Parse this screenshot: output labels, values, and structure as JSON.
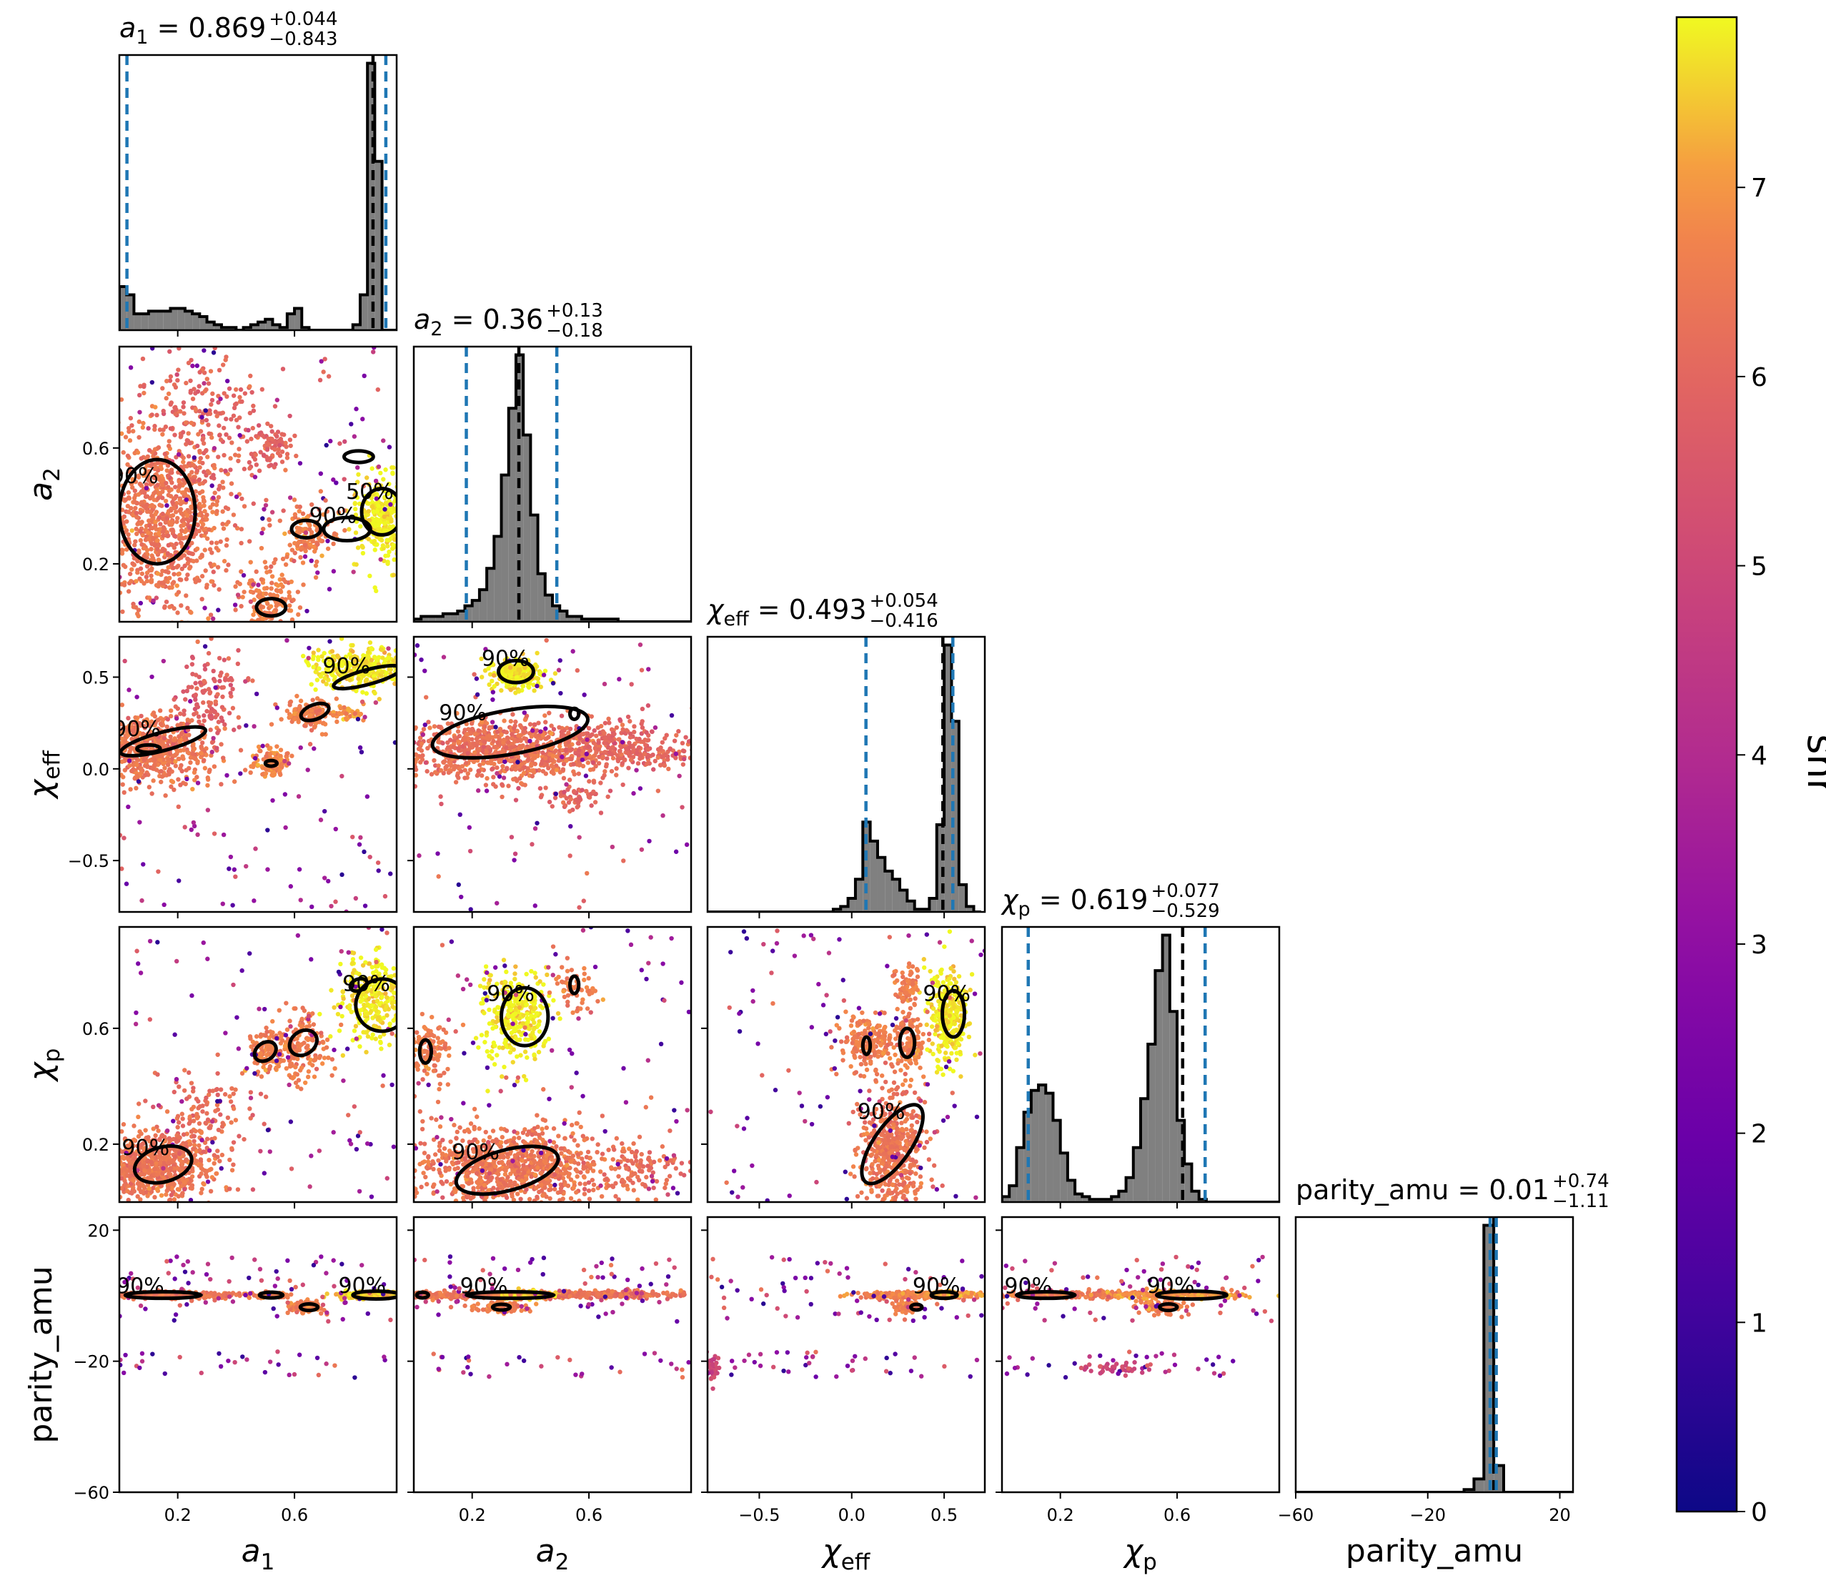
{
  "chart_data": {
    "type": "corner",
    "parameters": [
      {
        "key": "a1",
        "label": "a",
        "sub": "1",
        "italic": true,
        "title_value": "0.869",
        "title_plus": "+0.044",
        "title_minus": "−0.843",
        "range": [
          0.0,
          0.95
        ],
        "ticks": [
          0.2,
          0.6
        ],
        "tick_labels": [
          "0.2",
          "0.6"
        ]
      },
      {
        "key": "a2",
        "label": "a",
        "sub": "2",
        "italic": true,
        "title_value": "0.36",
        "title_plus": "+0.13",
        "title_minus": "−0.18",
        "range": [
          0.0,
          0.95
        ],
        "ticks": [
          0.2,
          0.6
        ],
        "tick_labels": [
          "0.2",
          "0.6"
        ]
      },
      {
        "key": "chi_eff",
        "label": "χ",
        "sub": "eff",
        "italic": true,
        "title_value": "0.493",
        "title_plus": "+0.054",
        "title_minus": "−0.416",
        "range": [
          -0.78,
          0.72
        ],
        "ticks": [
          -0.5,
          0.0,
          0.5
        ],
        "tick_labels": [
          "−0.5",
          "0.0",
          "0.5"
        ]
      },
      {
        "key": "chi_p",
        "label": "χ",
        "sub": "p",
        "italic": true,
        "title_value": "0.619",
        "title_plus": "+0.077",
        "title_minus": "−0.529",
        "range": [
          0.0,
          0.95
        ],
        "ticks": [
          0.2,
          0.6
        ],
        "tick_labels": [
          "0.2",
          "0.6"
        ]
      },
      {
        "key": "parity_amu",
        "label": "parity_amu",
        "sub": "",
        "italic": false,
        "title_value": "0.01",
        "title_plus": "+0.74",
        "title_minus": "−1.11",
        "range": [
          -60,
          24
        ],
        "ticks": [
          -60,
          -20,
          20
        ],
        "tick_labels": [
          "−60",
          "−20",
          "20"
        ]
      }
    ],
    "histograms": [
      {
        "bins": [
          0.0,
          0.025,
          0.05,
          0.075,
          0.1,
          0.125,
          0.15,
          0.175,
          0.2,
          0.225,
          0.25,
          0.275,
          0.3,
          0.325,
          0.35,
          0.375,
          0.4,
          0.425,
          0.45,
          0.475,
          0.5,
          0.525,
          0.55,
          0.575,
          0.6,
          0.625,
          0.65,
          0.675,
          0.7,
          0.725,
          0.75,
          0.775,
          0.8,
          0.825,
          0.85,
          0.875,
          0.9,
          0.925,
          0.95
        ],
        "counts": [
          0.16,
          0.13,
          0.06,
          0.06,
          0.07,
          0.07,
          0.07,
          0.08,
          0.08,
          0.07,
          0.06,
          0.05,
          0.03,
          0.02,
          0.01,
          0.01,
          0.0,
          0.01,
          0.02,
          0.03,
          0.04,
          0.02,
          0.01,
          0.06,
          0.08,
          0.01,
          0.0,
          0.0,
          0.0,
          0.0,
          0.0,
          0.0,
          0.02,
          0.13,
          0.98,
          0.62,
          0.0,
          0.0
        ],
        "markers": [
          0.026,
          0.869,
          0.913
        ]
      },
      {
        "bins": [
          0.0,
          0.025,
          0.05,
          0.075,
          0.1,
          0.125,
          0.15,
          0.175,
          0.2,
          0.225,
          0.25,
          0.275,
          0.3,
          0.325,
          0.35,
          0.375,
          0.4,
          0.425,
          0.45,
          0.475,
          0.5,
          0.525,
          0.55,
          0.575,
          0.6,
          0.625,
          0.65,
          0.675,
          0.7,
          0.725,
          0.75,
          0.775,
          0.8,
          0.825,
          0.85,
          0.875,
          0.9,
          0.925,
          0.95
        ],
        "counts": [
          0.01,
          0.02,
          0.02,
          0.02,
          0.03,
          0.03,
          0.04,
          0.06,
          0.08,
          0.12,
          0.2,
          0.32,
          0.55,
          0.8,
          1.0,
          0.7,
          0.4,
          0.18,
          0.1,
          0.06,
          0.04,
          0.02,
          0.02,
          0.01,
          0.01,
          0.01,
          0.01,
          0.01,
          0.0,
          0.0,
          0.0,
          0.0,
          0.0,
          0.0,
          0.0,
          0.0,
          0.0,
          0.0
        ],
        "markers": [
          0.18,
          0.36,
          0.49
        ]
      },
      {
        "bins": [
          -0.78,
          -0.74,
          -0.7,
          -0.66,
          -0.62,
          -0.58,
          -0.54,
          -0.5,
          -0.46,
          -0.42,
          -0.38,
          -0.34,
          -0.3,
          -0.26,
          -0.22,
          -0.18,
          -0.14,
          -0.1,
          -0.06,
          -0.02,
          0.02,
          0.06,
          0.1,
          0.14,
          0.18,
          0.22,
          0.26,
          0.3,
          0.34,
          0.38,
          0.42,
          0.46,
          0.5,
          0.54,
          0.58,
          0.62,
          0.66,
          0.7
        ],
        "counts": [
          0.0,
          0.0,
          0.0,
          0.0,
          0.0,
          0.0,
          0.0,
          0.0,
          0.0,
          0.0,
          0.0,
          0.0,
          0.0,
          0.0,
          0.0,
          0.0,
          0.0,
          0.01,
          0.02,
          0.05,
          0.12,
          0.33,
          0.26,
          0.2,
          0.15,
          0.12,
          0.08,
          0.04,
          0.01,
          0.01,
          0.05,
          0.32,
          0.98,
          0.7,
          0.1,
          0.02,
          0.0
        ],
        "markers": [
          0.077,
          0.493,
          0.547
        ]
      },
      {
        "bins": [
          0.0,
          0.025,
          0.05,
          0.075,
          0.1,
          0.125,
          0.15,
          0.175,
          0.2,
          0.225,
          0.25,
          0.275,
          0.3,
          0.325,
          0.35,
          0.375,
          0.4,
          0.425,
          0.45,
          0.475,
          0.5,
          0.525,
          0.55,
          0.575,
          0.6,
          0.625,
          0.65,
          0.675,
          0.7,
          0.725,
          0.75,
          0.775,
          0.8,
          0.825,
          0.85,
          0.875,
          0.9,
          0.925,
          0.95
        ],
        "counts": [
          0.02,
          0.06,
          0.2,
          0.33,
          0.41,
          0.43,
          0.4,
          0.3,
          0.18,
          0.08,
          0.03,
          0.02,
          0.01,
          0.01,
          0.01,
          0.02,
          0.04,
          0.09,
          0.2,
          0.38,
          0.58,
          0.85,
          0.98,
          0.7,
          0.3,
          0.14,
          0.04,
          0.01,
          0.0,
          0.0,
          0.0,
          0.0,
          0.0,
          0.0,
          0.0,
          0.0,
          0.0,
          0.0
        ],
        "markers": [
          0.09,
          0.619,
          0.696
        ]
      },
      {
        "bins": [
          -60,
          -57,
          -54,
          -51,
          -48,
          -45,
          -42,
          -39,
          -36,
          -33,
          -30,
          -27,
          -24,
          -21,
          -18,
          -15,
          -12,
          -9,
          -6,
          -3,
          0,
          3,
          6,
          9,
          12,
          15,
          18,
          21,
          24
        ],
        "counts": [
          0.0,
          0.0,
          0.0,
          0.0,
          0.0,
          0.0,
          0.0,
          0.0,
          0.0,
          0.0,
          0.0,
          0.0,
          0.0,
          0.0,
          0.0,
          0.0,
          0.0,
          0.01,
          0.05,
          1.0,
          0.1,
          0.0,
          0.0,
          0.0,
          0.0,
          0.0,
          0.0,
          0.0
        ],
        "markers": [
          -1.1,
          0.01,
          0.75
        ]
      }
    ],
    "clusters": {
      "1-0": [
        [
          0.15,
          0.35,
          0.12,
          0.16,
          6.4,
          900
        ],
        [
          0.27,
          0.72,
          0.1,
          0.14,
          6.0,
          200
        ],
        [
          0.9,
          0.36,
          0.05,
          0.08,
          7.8,
          300
        ],
        [
          0.64,
          0.3,
          0.05,
          0.05,
          6.6,
          120
        ],
        [
          0.52,
          0.07,
          0.05,
          0.06,
          6.6,
          150
        ],
        [
          0.52,
          0.6,
          0.04,
          0.04,
          6.0,
          80
        ]
      ],
      "2-0": [
        [
          0.12,
          0.1,
          0.1,
          0.09,
          6.4,
          600
        ],
        [
          0.83,
          0.55,
          0.08,
          0.06,
          7.8,
          300
        ],
        [
          0.65,
          0.3,
          0.04,
          0.04,
          6.6,
          120
        ],
        [
          0.52,
          0.03,
          0.03,
          0.04,
          6.8,
          120
        ],
        [
          0.78,
          0.3,
          0.03,
          0.02,
          7.0,
          40
        ],
        [
          0.3,
          0.4,
          0.06,
          0.1,
          5.8,
          120
        ]
      ],
      "2-1": [
        [
          0.32,
          0.1,
          0.2,
          0.08,
          6.3,
          900
        ],
        [
          0.35,
          0.52,
          0.04,
          0.04,
          7.8,
          280
        ],
        [
          0.7,
          0.15,
          0.1,
          0.06,
          6.0,
          150
        ],
        [
          0.55,
          -0.15,
          0.05,
          0.04,
          6.0,
          60
        ],
        [
          0.8,
          0.08,
          0.1,
          0.04,
          6.0,
          80
        ]
      ],
      "3-0": [
        [
          0.12,
          0.12,
          0.1,
          0.06,
          6.4,
          700
        ],
        [
          0.88,
          0.7,
          0.06,
          0.08,
          7.8,
          300
        ],
        [
          0.62,
          0.54,
          0.05,
          0.06,
          6.6,
          160
        ],
        [
          0.5,
          0.52,
          0.03,
          0.04,
          6.6,
          100
        ],
        [
          0.28,
          0.3,
          0.08,
          0.08,
          6.2,
          120
        ]
      ],
      "3-1": [
        [
          0.35,
          0.12,
          0.18,
          0.07,
          6.4,
          900
        ],
        [
          0.35,
          0.64,
          0.06,
          0.08,
          7.8,
          300
        ],
        [
          0.06,
          0.52,
          0.04,
          0.05,
          6.6,
          120
        ],
        [
          0.55,
          0.75,
          0.04,
          0.04,
          6.6,
          60
        ],
        [
          0.8,
          0.12,
          0.08,
          0.04,
          6.2,
          80
        ]
      ],
      "3-2": [
        [
          0.22,
          0.18,
          0.08,
          0.1,
          6.4,
          500
        ],
        [
          0.52,
          0.64,
          0.05,
          0.08,
          7.8,
          300
        ],
        [
          0.1,
          0.55,
          0.08,
          0.05,
          6.6,
          180
        ],
        [
          0.32,
          0.55,
          0.04,
          0.06,
          6.6,
          120
        ],
        [
          0.3,
          0.75,
          0.04,
          0.04,
          6.6,
          60
        ]
      ],
      "4-0": [
        [
          0.15,
          0.2,
          0.13,
          0.5,
          6.4,
          300
        ],
        [
          0.52,
          0.2,
          0.04,
          0.4,
          6.6,
          80
        ],
        [
          0.64,
          -3.5,
          0.03,
          1.0,
          6.6,
          80
        ],
        [
          0.85,
          0.2,
          0.05,
          0.6,
          7.5,
          150
        ]
      ],
      "4-1": [
        [
          0.35,
          0.2,
          0.25,
          0.5,
          6.4,
          400
        ],
        [
          0.3,
          -3.5,
          0.05,
          1.0,
          6.6,
          80
        ],
        [
          0.4,
          0.2,
          0.05,
          0.6,
          7.5,
          120
        ],
        [
          0.7,
          0.4,
          0.12,
          0.5,
          6.3,
          150
        ]
      ],
      "4-2": [
        [
          0.3,
          0.2,
          0.15,
          0.5,
          6.6,
          250
        ],
        [
          0.5,
          0.3,
          0.1,
          0.5,
          7.0,
          120
        ],
        [
          0.3,
          -3.5,
          0.04,
          1.0,
          6.6,
          60
        ],
        [
          -0.75,
          -22,
          0.02,
          2.0,
          5.0,
          40
        ]
      ],
      "4-3": [
        [
          0.25,
          0.2,
          0.15,
          0.5,
          6.4,
          250
        ],
        [
          0.6,
          0.3,
          0.12,
          0.6,
          7.0,
          200
        ],
        [
          0.55,
          -3.5,
          0.04,
          1.0,
          6.6,
          80
        ],
        [
          0.4,
          -22,
          0.06,
          1.0,
          5.0,
          40
        ]
      ]
    },
    "contours": {
      "1-0": [
        [
          0.13,
          0.38,
          0.13,
          0.18,
          "90%"
        ],
        [
          0.9,
          0.38,
          0.07,
          0.08,
          "50%"
        ],
        [
          0.78,
          0.32,
          0.08,
          0.04,
          "90%"
        ],
        [
          0.64,
          0.32,
          0.05,
          0.03,
          ""
        ],
        [
          0.82,
          0.57,
          0.05,
          0.02,
          ""
        ],
        [
          0.52,
          0.05,
          0.05,
          0.03,
          ""
        ]
      ],
      "2-0": [
        [
          0.15,
          0.15,
          0.15,
          0.05,
          "90%",
          -15
        ],
        [
          0.85,
          0.5,
          0.12,
          0.04,
          "90%",
          -15
        ],
        [
          0.67,
          0.31,
          0.05,
          0.04,
          "",
          -20
        ],
        [
          0.52,
          0.03,
          0.02,
          0.01,
          "",
          0
        ],
        [
          0.1,
          0.11,
          0.04,
          0.02,
          "",
          0
        ]
      ],
      "2-1": [
        [
          0.33,
          0.2,
          0.27,
          0.12,
          "90%",
          -10
        ],
        [
          0.35,
          0.53,
          0.06,
          0.06,
          "90%",
          0
        ],
        [
          0.55,
          0.3,
          0.015,
          0.03,
          "",
          0
        ]
      ],
      "3-0": [
        [
          0.15,
          0.13,
          0.1,
          0.06,
          "90%",
          -15
        ],
        [
          0.9,
          0.68,
          0.09,
          0.09,
          "90%",
          -20
        ],
        [
          0.63,
          0.55,
          0.05,
          0.04,
          "",
          -35
        ],
        [
          0.5,
          0.52,
          0.04,
          0.03,
          "",
          -35
        ],
        [
          0.82,
          0.75,
          0.03,
          0.02,
          "",
          -20
        ]
      ],
      "3-1": [
        [
          0.32,
          0.11,
          0.18,
          0.07,
          "90%",
          -15
        ],
        [
          0.38,
          0.64,
          0.08,
          0.1,
          "90%",
          0
        ],
        [
          0.04,
          0.52,
          0.02,
          0.04,
          "",
          0
        ],
        [
          0.55,
          0.75,
          0.015,
          0.03,
          "",
          0
        ]
      ],
      "3-2": [
        [
          0.22,
          0.2,
          0.1,
          0.16,
          "90%",
          35
        ],
        [
          0.55,
          0.65,
          0.06,
          0.08,
          "90%",
          0
        ],
        [
          0.3,
          0.55,
          0.04,
          0.05,
          "",
          0
        ],
        [
          0.08,
          0.54,
          0.02,
          0.03,
          "",
          0
        ]
      ],
      "4-0": [
        [
          0.15,
          0.2,
          0.13,
          1.0,
          "90%"
        ],
        [
          0.88,
          0.2,
          0.08,
          1.2,
          "90%"
        ],
        [
          0.52,
          0.2,
          0.04,
          0.6,
          ""
        ],
        [
          0.65,
          -3.5,
          0.03,
          1.0,
          ""
        ]
      ],
      "4-1": [
        [
          0.33,
          0.2,
          0.15,
          1.0,
          "90%"
        ],
        [
          0.03,
          0.2,
          0.02,
          0.8,
          ""
        ],
        [
          0.3,
          -3.5,
          0.03,
          0.8,
          ""
        ]
      ],
      "4-2": [
        [
          0.5,
          0.2,
          0.07,
          1.0,
          "90%"
        ],
        [
          0.35,
          -3.5,
          0.03,
          0.8,
          ""
        ]
      ],
      "4-3": [
        [
          0.65,
          0.2,
          0.12,
          1.2,
          "90%"
        ],
        [
          0.15,
          0.2,
          0.1,
          1.0,
          "90%"
        ],
        [
          0.57,
          -3.5,
          0.03,
          1.0,
          ""
        ]
      ]
    },
    "colorbar": {
      "label": "snr",
      "min": 0,
      "max": 7.9,
      "ticks": [
        0,
        1,
        2,
        3,
        4,
        5,
        6,
        7
      ],
      "tick_labels": [
        "0",
        "1",
        "2",
        "3",
        "4",
        "5",
        "6",
        "7"
      ],
      "colormap": "plasma"
    },
    "colors": {
      "hist_fill": "#808080",
      "hist_edge": "#000000",
      "marker": "#1f77b4",
      "contour": "#000000"
    }
  }
}
